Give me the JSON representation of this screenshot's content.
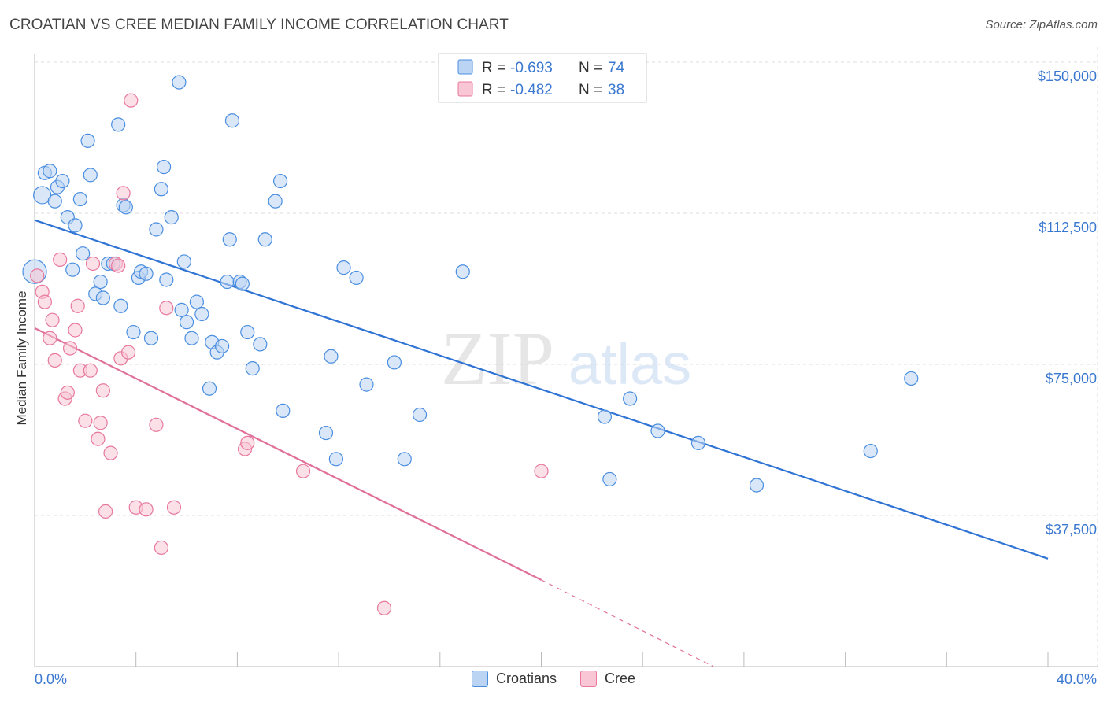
{
  "title": "CROATIAN VS CREE MEDIAN FAMILY INCOME CORRELATION CHART",
  "source": "Source: ZipAtlas.com",
  "watermark": {
    "zip": "ZIP",
    "atlas": "atlas"
  },
  "colors": {
    "blue": "#4a8ee0",
    "blue_fill": "#bcd4f3",
    "blue_line": "#2f73d4",
    "pink": "#e8789e",
    "pink_fill": "#f8c6d5",
    "pink_line": "#e0709a",
    "axis_label_blue": "#3a78d0",
    "grid": "#dddddd"
  },
  "legend": {
    "rows": [
      {
        "r_label": "R = ",
        "r_value": "-0.693",
        "n_label": "N = ",
        "n_value": "74"
      },
      {
        "r_label": "R = ",
        "r_value": "-0.482",
        "n_label": "N = ",
        "n_value": "38"
      }
    ]
  },
  "chart_data": {
    "type": "scatter",
    "title": "CROATIAN VS CREE MEDIAN FAMILY INCOME CORRELATION CHART",
    "xlabel": "",
    "ylabel": "Median Family Income",
    "xlim": [
      0,
      40
    ],
    "ylim": [
      0,
      157500
    ],
    "x_tick_labels": [
      "0.0%",
      "40.0%"
    ],
    "y_ticks": [
      37500,
      75000,
      112500,
      150000
    ],
    "y_tick_labels": [
      "$37,500",
      "$75,000",
      "$112,500",
      "$150,000"
    ],
    "grid": true,
    "legend_position": "top-center",
    "series": [
      {
        "name": "Croatians",
        "color": "#4a8ee0",
        "trend": {
          "x": [
            0,
            40
          ],
          "y": [
            110800,
            26800
          ]
        },
        "points": [
          [
            0.0,
            98000
          ],
          [
            0.3,
            117000
          ],
          [
            0.4,
            122500
          ],
          [
            0.6,
            123000
          ],
          [
            0.8,
            115500
          ],
          [
            0.9,
            119000
          ],
          [
            1.1,
            120500
          ],
          [
            1.3,
            111500
          ],
          [
            1.5,
            98500
          ],
          [
            1.6,
            109500
          ],
          [
            1.8,
            116000
          ],
          [
            1.9,
            102500
          ],
          [
            2.1,
            130500
          ],
          [
            2.2,
            122000
          ],
          [
            2.4,
            92500
          ],
          [
            2.6,
            95500
          ],
          [
            2.7,
            91500
          ],
          [
            2.9,
            100000
          ],
          [
            3.1,
            100000
          ],
          [
            3.3,
            134500
          ],
          [
            3.4,
            89500
          ],
          [
            3.5,
            114500
          ],
          [
            3.6,
            114000
          ],
          [
            3.9,
            83000
          ],
          [
            4.1,
            96500
          ],
          [
            4.2,
            98000
          ],
          [
            4.4,
            97500
          ],
          [
            4.6,
            81500
          ],
          [
            4.8,
            108500
          ],
          [
            5.0,
            118500
          ],
          [
            5.1,
            124000
          ],
          [
            5.2,
            96000
          ],
          [
            5.4,
            111500
          ],
          [
            5.7,
            145000
          ],
          [
            5.8,
            88500
          ],
          [
            5.9,
            100500
          ],
          [
            6.0,
            85500
          ],
          [
            6.2,
            81500
          ],
          [
            6.4,
            90500
          ],
          [
            6.6,
            87500
          ],
          [
            6.9,
            69000
          ],
          [
            7.0,
            80500
          ],
          [
            7.2,
            78000
          ],
          [
            7.4,
            79500
          ],
          [
            7.6,
            95500
          ],
          [
            7.7,
            106000
          ],
          [
            7.8,
            135500
          ],
          [
            8.1,
            95500
          ],
          [
            8.2,
            95000
          ],
          [
            8.4,
            83000
          ],
          [
            8.6,
            74000
          ],
          [
            8.9,
            80000
          ],
          [
            9.1,
            106000
          ],
          [
            9.5,
            115500
          ],
          [
            9.7,
            120500
          ],
          [
            9.8,
            63500
          ],
          [
            11.5,
            58000
          ],
          [
            11.7,
            77000
          ],
          [
            11.9,
            51500
          ],
          [
            12.2,
            99000
          ],
          [
            12.7,
            96500
          ],
          [
            13.1,
            70000
          ],
          [
            14.2,
            75500
          ],
          [
            14.6,
            51500
          ],
          [
            15.2,
            62500
          ],
          [
            16.9,
            98000
          ],
          [
            22.5,
            62000
          ],
          [
            22.7,
            46500
          ],
          [
            23.5,
            66500
          ],
          [
            24.6,
            58500
          ],
          [
            26.2,
            55500
          ],
          [
            28.5,
            45000
          ],
          [
            33.0,
            53500
          ],
          [
            34.6,
            71500
          ]
        ]
      },
      {
        "name": "Cree",
        "color": "#e8789e",
        "trend": {
          "x": [
            0,
            20
          ],
          "y": [
            84000,
            21500
          ]
        },
        "trend_dashed": {
          "x": [
            20,
            26.8
          ],
          "y": [
            21500,
            0
          ]
        },
        "points": [
          [
            0.1,
            97000
          ],
          [
            0.3,
            93000
          ],
          [
            0.4,
            90500
          ],
          [
            0.6,
            81500
          ],
          [
            0.7,
            86000
          ],
          [
            0.8,
            76000
          ],
          [
            1.0,
            101000
          ],
          [
            1.2,
            66500
          ],
          [
            1.3,
            68000
          ],
          [
            1.4,
            79000
          ],
          [
            1.6,
            83500
          ],
          [
            1.7,
            89500
          ],
          [
            1.8,
            73500
          ],
          [
            2.0,
            61000
          ],
          [
            2.2,
            73500
          ],
          [
            2.3,
            100000
          ],
          [
            2.5,
            56500
          ],
          [
            2.6,
            60500
          ],
          [
            2.7,
            68500
          ],
          [
            2.8,
            38500
          ],
          [
            3.0,
            53000
          ],
          [
            3.2,
            100000
          ],
          [
            3.3,
            99500
          ],
          [
            3.4,
            76500
          ],
          [
            3.5,
            117500
          ],
          [
            3.7,
            78000
          ],
          [
            3.8,
            140500
          ],
          [
            4.0,
            39500
          ],
          [
            4.4,
            39000
          ],
          [
            4.8,
            60000
          ],
          [
            5.0,
            29500
          ],
          [
            5.2,
            89000
          ],
          [
            5.5,
            39500
          ],
          [
            8.3,
            54000
          ],
          [
            8.4,
            55500
          ],
          [
            10.6,
            48500
          ],
          [
            13.8,
            14500
          ],
          [
            20.0,
            48500
          ]
        ]
      }
    ]
  },
  "bottom_legend": [
    {
      "label": "Croatians"
    },
    {
      "label": "Cree"
    }
  ]
}
